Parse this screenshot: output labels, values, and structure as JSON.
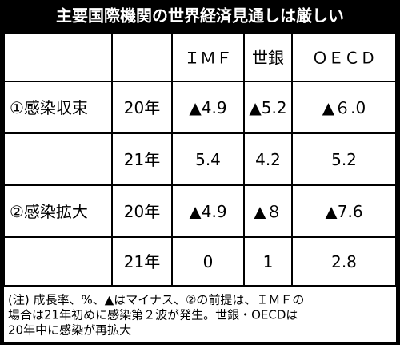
{
  "title": "主要国際機関の世界経済見通しは厳しい",
  "table": {
    "header": [
      "ＩＭＦ",
      "世銀",
      "ＯＥＣＤ"
    ],
    "rows": [
      {
        "group": "①感染収束",
        "year": "20年",
        "cells": [
          "▲4.9",
          "▲5.2",
          "▲６.0"
        ]
      },
      {
        "year": "21年",
        "cells": [
          "5.4",
          "4.2",
          "5.2"
        ]
      },
      {
        "group": "②感染拡大",
        "year": "20年",
        "cells": [
          "▲4.9",
          "▲８",
          "▲7.6"
        ]
      },
      {
        "year": "21年",
        "cells": [
          "0",
          "1",
          "2.8"
        ]
      }
    ]
  },
  "note": [
    "(注) 成長率、%、▲はマイナス、②の前提は、ＩＭＦの",
    "場合は21年初めに感染第２波が発生。世銀・OECDは",
    "20年中に感染が再拡大"
  ]
}
